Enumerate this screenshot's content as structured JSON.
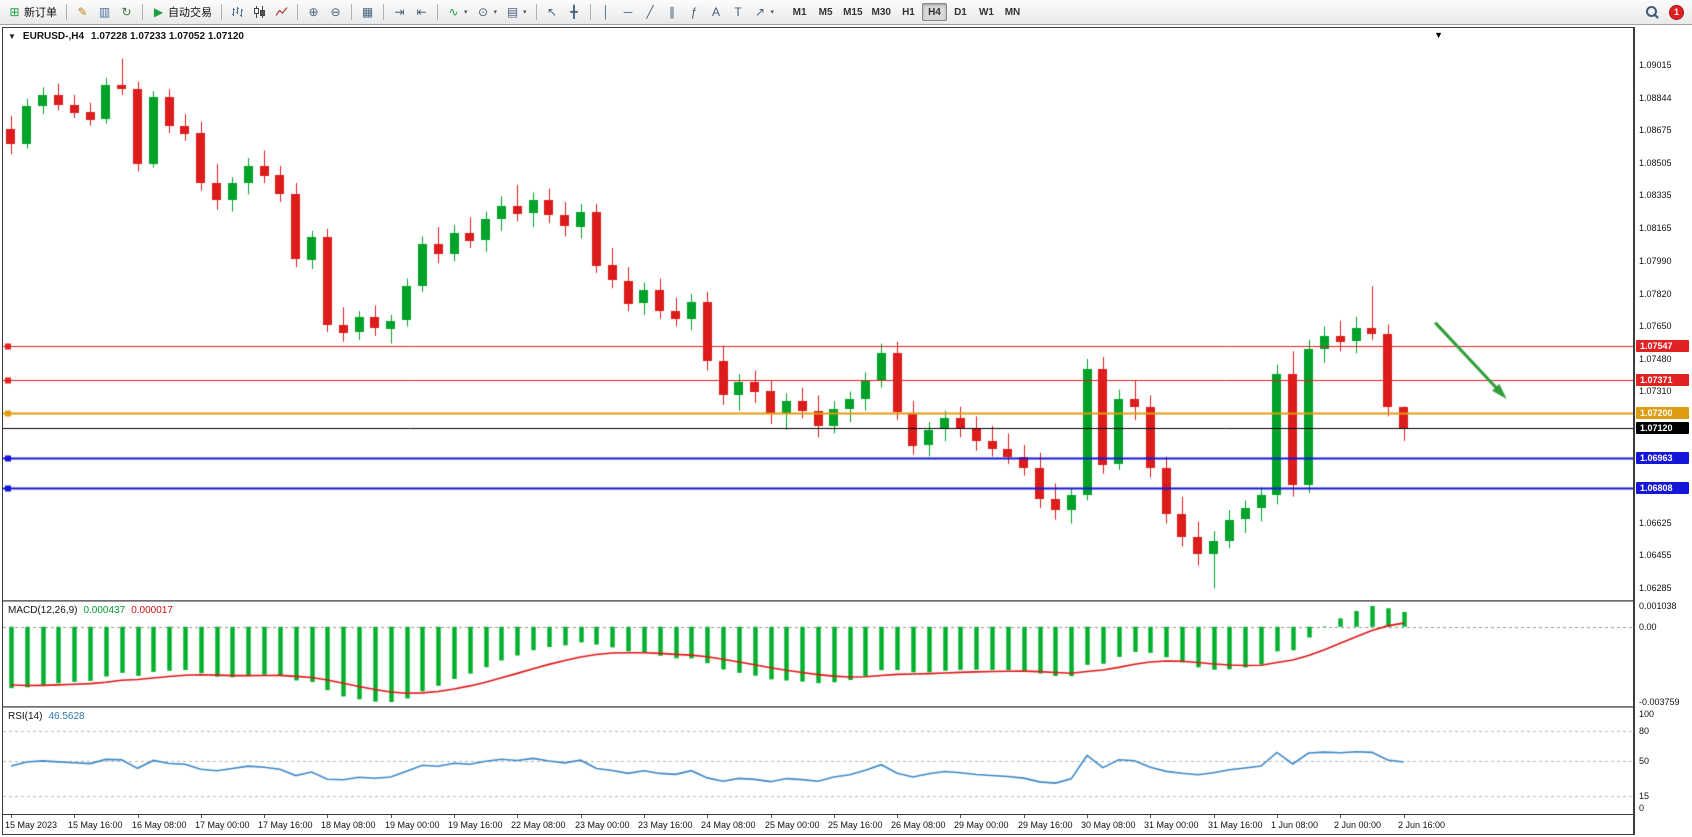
{
  "toolbar": {
    "notification_count": "1",
    "active_timeframe": "H4",
    "timeframes": [
      "M1",
      "M5",
      "M15",
      "M30",
      "H1",
      "H4",
      "D1",
      "W1",
      "MN"
    ],
    "icon_groups": [
      {
        "items": [
          {
            "name": "new-order-button",
            "icon": "new-order-icon",
            "glyph": "⊞",
            "color": "#1f9d46",
            "label": "新订单"
          }
        ]
      },
      {
        "items": [
          {
            "name": "metaeditor-button",
            "icon": "metaeditor-icon",
            "glyph": "✎",
            "color": "#b8860b"
          },
          {
            "name": "market-watch-button",
            "icon": "market-watch-icon",
            "glyph": "▥",
            "color": "#4a6fa5"
          },
          {
            "name": "refresh-button",
            "icon": "refresh-icon",
            "glyph": "↻",
            "color": "#3a7d3a"
          }
        ]
      },
      {
        "items": [
          {
            "name": "autotrading-button",
            "icon": "autotrading-icon",
            "glyph": "▶",
            "color": "#1f9d46",
            "label": "自动交易"
          }
        ]
      },
      {
        "items": [
          {
            "name": "bar-chart-button",
            "icon": "bar-chart-icon",
            "svg": "bars"
          },
          {
            "name": "candlestick-chart-button",
            "icon": "candlestick-chart-icon",
            "svg": "candles"
          },
          {
            "name": "line-chart-button",
            "icon": "line-chart-icon",
            "svg": "line"
          }
        ]
      },
      {
        "items": [
          {
            "name": "zoom-in-button",
            "icon": "zoom-in-icon",
            "glyph": "⊕"
          },
          {
            "name": "zoom-out-button",
            "icon": "zoom-out-icon",
            "glyph": "⊖"
          }
        ]
      },
      {
        "items": [
          {
            "name": "tile-windows-button",
            "icon": "tile-windows-icon",
            "glyph": "▦"
          }
        ]
      },
      {
        "items": [
          {
            "name": "auto-scroll-button",
            "icon": "auto-scroll-icon",
            "glyph": "⇥"
          },
          {
            "name": "chart-shift-button",
            "icon": "chart-shift-icon",
            "glyph": "⇤"
          }
        ]
      },
      {
        "items": [
          {
            "name": "indicators-button",
            "icon": "indicators-icon",
            "glyph": "∿",
            "color": "#1f9d46",
            "caret": true
          },
          {
            "name": "periods-button",
            "icon": "periods-icon",
            "glyph": "⊙",
            "caret": true
          },
          {
            "name": "templates-button",
            "icon": "templates-icon",
            "glyph": "▤",
            "caret": true
          }
        ]
      },
      {
        "items": [
          {
            "name": "cursor-button",
            "icon": "cursor-icon",
            "glyph": "↖"
          },
          {
            "name": "crosshair-button",
            "icon": "crosshair-icon",
            "glyph": "╋"
          }
        ]
      },
      {
        "items": [
          {
            "name": "vertical-line-button",
            "icon": "vertical-line-icon",
            "glyph": "│"
          },
          {
            "name": "horizontal-line-button",
            "icon": "horizontal-line-icon",
            "glyph": "─"
          },
          {
            "name": "trendline-button",
            "icon": "trendline-icon",
            "glyph": "╱"
          },
          {
            "name": "channel-button",
            "icon": "channel-icon",
            "glyph": "∥"
          },
          {
            "name": "fibonacci-button",
            "icon": "fibonacci-icon",
            "glyph": "ƒ"
          },
          {
            "name": "text-button",
            "icon": "text-icon",
            "glyph": "A"
          },
          {
            "name": "label-button",
            "icon": "label-icon",
            "glyph": "T"
          },
          {
            "name": "arrows-button",
            "icon": "arrows-icon",
            "glyph": "↗",
            "caret": true
          }
        ]
      }
    ]
  },
  "chart": {
    "collapse_glyph": "▼",
    "top_arrow_glyph": "▼",
    "symbol_period": "EURUSD-,H4",
    "ohlc_text": "1.07228 1.07233 1.07052 1.07120",
    "open": "1.07228",
    "high": "1.07233",
    "low": "1.07052",
    "close": "1.07120"
  },
  "chart_data": {
    "type": "candlestick",
    "title": "EURUSD-,H4",
    "timeframe": "H4",
    "grid": false,
    "slots_total": 103,
    "x_label_every": 4,
    "x_labels": [
      "15 May 2023",
      "15 May 16:00",
      "16 May 08:00",
      "17 May 00:00",
      "17 May 16:00",
      "18 May 08:00",
      "19 May 00:00",
      "19 May 16:00",
      "22 May 08:00",
      "23 May 00:00",
      "23 May 16:00",
      "24 May 08:00",
      "25 May 00:00",
      "25 May 16:00",
      "26 May 08:00",
      "29 May 00:00",
      "29 May 16:00",
      "30 May 08:00",
      "31 May 00:00",
      "31 May 16:00",
      "1 Jun 08:00",
      "2 Jun 00:00",
      "2 Jun 16:00"
    ],
    "price_range": [
      1.0622,
      1.0921
    ],
    "y_axis_ticks": [
      "1.09015",
      "1.08844",
      "1.08675",
      "1.08505",
      "1.08335",
      "1.08165",
      "1.07990",
      "1.07820",
      "1.07650",
      "1.07480",
      "1.07310",
      "1.06625",
      "1.06455",
      "1.06285"
    ],
    "current_price": "1.07120",
    "candles": [
      [
        1.0868,
        1.0875,
        1.0855,
        1.086
      ],
      [
        1.086,
        1.0884,
        1.0858,
        1.088
      ],
      [
        1.088,
        1.089,
        1.0876,
        1.0886
      ],
      [
        1.0886,
        1.0892,
        1.0878,
        1.0881
      ],
      [
        1.0881,
        1.0886,
        1.0874,
        1.0877
      ],
      [
        1.0877,
        1.0882,
        1.087,
        1.0873
      ],
      [
        1.0873,
        1.0895,
        1.0871,
        1.0891
      ],
      [
        1.0891,
        1.0905,
        1.0886,
        1.0889
      ],
      [
        1.0889,
        1.0893,
        1.0846,
        1.085
      ],
      [
        1.085,
        1.0888,
        1.0848,
        1.0885
      ],
      [
        1.0885,
        1.0889,
        1.0866,
        1.087
      ],
      [
        1.087,
        1.0876,
        1.0862,
        1.0866
      ],
      [
        1.0866,
        1.0872,
        1.0836,
        1.084
      ],
      [
        1.084,
        1.085,
        1.0826,
        1.0831
      ],
      [
        1.0831,
        1.0843,
        1.0825,
        1.084
      ],
      [
        1.084,
        1.0853,
        1.0834,
        1.0849
      ],
      [
        1.0849,
        1.0857,
        1.084,
        1.0844
      ],
      [
        1.0844,
        1.0849,
        1.083,
        1.0834
      ],
      [
        1.0834,
        1.084,
        1.0796,
        1.08
      ],
      [
        1.08,
        1.0815,
        1.0795,
        1.0812
      ],
      [
        1.0812,
        1.0816,
        1.0762,
        1.0766
      ],
      [
        1.0766,
        1.0775,
        1.0757,
        1.0762
      ],
      [
        1.0762,
        1.0773,
        1.0758,
        1.077
      ],
      [
        1.077,
        1.0776,
        1.076,
        1.0764
      ],
      [
        1.0764,
        1.0771,
        1.0756,
        1.0768
      ],
      [
        1.0768,
        1.079,
        1.0765,
        1.0786
      ],
      [
        1.0786,
        1.0812,
        1.0783,
        1.0808
      ],
      [
        1.0808,
        1.0817,
        1.0798,
        1.0803
      ],
      [
        1.0803,
        1.0818,
        1.0799,
        1.0814
      ],
      [
        1.0814,
        1.0822,
        1.0806,
        1.081
      ],
      [
        1.081,
        1.0825,
        1.0804,
        1.0821
      ],
      [
        1.0821,
        1.0833,
        1.0815,
        1.0828
      ],
      [
        1.0828,
        1.0839,
        1.082,
        1.0824
      ],
      [
        1.0824,
        1.0835,
        1.0817,
        1.0831
      ],
      [
        1.0831,
        1.0837,
        1.0819,
        1.0823
      ],
      [
        1.0823,
        1.083,
        1.0812,
        1.0817
      ],
      [
        1.0817,
        1.0829,
        1.0811,
        1.0825
      ],
      [
        1.0825,
        1.0829,
        1.0793,
        1.0797
      ],
      [
        1.0797,
        1.0806,
        1.0785,
        1.0789
      ],
      [
        1.0789,
        1.0796,
        1.0773,
        1.0777
      ],
      [
        1.0777,
        1.0788,
        1.0771,
        1.0784
      ],
      [
        1.0784,
        1.079,
        1.0769,
        1.0773
      ],
      [
        1.0773,
        1.078,
        1.0765,
        1.0769
      ],
      [
        1.0769,
        1.0782,
        1.0763,
        1.0778
      ],
      [
        1.0778,
        1.0783,
        1.0742,
        1.0747
      ],
      [
        1.0747,
        1.0755,
        1.0724,
        1.0729
      ],
      [
        1.0729,
        1.074,
        1.0721,
        1.0736
      ],
      [
        1.0736,
        1.0742,
        1.0725,
        1.0731
      ],
      [
        1.0731,
        1.0737,
        1.0714,
        1.0719
      ],
      [
        1.0719,
        1.073,
        1.0711,
        1.0726
      ],
      [
        1.0726,
        1.0733,
        1.0717,
        1.0721
      ],
      [
        1.0721,
        1.0729,
        1.0707,
        1.0713
      ],
      [
        1.0713,
        1.0726,
        1.0709,
        1.0722
      ],
      [
        1.0722,
        1.0731,
        1.0715,
        1.0727
      ],
      [
        1.0727,
        1.0741,
        1.0721,
        1.0737
      ],
      [
        1.0737,
        1.0756,
        1.0733,
        1.0751
      ],
      [
        1.0751,
        1.0757,
        1.0716,
        1.072
      ],
      [
        1.072,
        1.0726,
        1.0698,
        1.0703
      ],
      [
        1.0703,
        1.0715,
        1.0697,
        1.0711
      ],
      [
        1.0711,
        1.0721,
        1.0705,
        1.0717
      ],
      [
        1.0717,
        1.0723,
        1.0707,
        1.0712
      ],
      [
        1.0712,
        1.0718,
        1.07,
        1.0705
      ],
      [
        1.0705,
        1.0713,
        1.0697,
        1.0701
      ],
      [
        1.0701,
        1.0709,
        1.0693,
        1.0697
      ],
      [
        1.0697,
        1.0703,
        1.0687,
        1.0691
      ],
      [
        1.0691,
        1.0699,
        1.067,
        1.0675
      ],
      [
        1.0675,
        1.0683,
        1.0664,
        1.0669
      ],
      [
        1.0669,
        1.068,
        1.0662,
        1.0677
      ],
      [
        1.0677,
        1.0748,
        1.0674,
        1.0743
      ],
      [
        1.0743,
        1.0749,
        1.0688,
        1.0693
      ],
      [
        1.0693,
        1.0732,
        1.069,
        1.0727
      ],
      [
        1.0727,
        1.0737,
        1.0716,
        1.0723
      ],
      [
        1.0723,
        1.0729,
        1.0686,
        1.0691
      ],
      [
        1.0691,
        1.0697,
        1.0662,
        1.0667
      ],
      [
        1.0667,
        1.0676,
        1.065,
        1.0655
      ],
      [
        1.0655,
        1.0663,
        1.064,
        1.0646
      ],
      [
        1.0646,
        1.0658,
        1.0628,
        1.0653
      ],
      [
        1.0653,
        1.0669,
        1.0649,
        1.0664
      ],
      [
        1.0664,
        1.0674,
        1.0657,
        1.067
      ],
      [
        1.067,
        1.0681,
        1.0663,
        1.0677
      ],
      [
        1.0677,
        1.0745,
        1.0672,
        1.074
      ],
      [
        1.074,
        1.0752,
        1.0676,
        1.0682
      ],
      [
        1.0682,
        1.0758,
        1.0678,
        1.0753
      ],
      [
        1.0753,
        1.0765,
        1.0746,
        1.076
      ],
      [
        1.076,
        1.0768,
        1.0752,
        1.0757
      ],
      [
        1.0757,
        1.077,
        1.0751,
        1.0764
      ],
      [
        1.0764,
        1.0786,
        1.0758,
        1.0761
      ],
      [
        1.0761,
        1.0766,
        1.0718,
        1.0723
      ],
      [
        1.07228,
        1.07233,
        1.07052,
        1.0712
      ]
    ],
    "horizontal_lines": [
      {
        "price": 1.07547,
        "label": "1.07547",
        "color": "#e02222",
        "width": 1,
        "style": "solid",
        "handle": true
      },
      {
        "price": 1.07371,
        "label": "1.07371",
        "color": "#e02222",
        "width": 1,
        "style": "solid",
        "handle": true
      },
      {
        "price": 1.072,
        "label": "1.07200",
        "color": "#e09c10",
        "width": 2,
        "style": "solid",
        "handle": true
      },
      {
        "price": 1.0712,
        "label": "1.07120",
        "color": "#000000",
        "width": 1,
        "style": "solid",
        "handle": false
      },
      {
        "price": 1.06963,
        "label": "1.06963",
        "color": "#1616d8",
        "width": 2,
        "style": "solid",
        "handle": true
      },
      {
        "price": 1.06808,
        "label": "1.06808",
        "color": "#1616d8",
        "width": 2,
        "style": "solid",
        "handle": true
      }
    ],
    "arrow": {
      "from_slot": 90,
      "from_price": 1.0767,
      "to_slot": 94.3,
      "to_price": 1.0729,
      "color": "#2f9e38"
    },
    "colors": {
      "up": "#00a32a",
      "down": "#dd1c1c",
      "macd_hist": "#00b02c",
      "macd_signal": "#e01616",
      "rsi_line": "#3c87c6"
    },
    "macd": {
      "label": "MACD(12,26,9)",
      "main_value": "0.000437",
      "signal_value": "0.000017",
      "params": [
        12,
        26,
        9
      ],
      "range": [
        -0.003759,
        0.001038
      ],
      "axis_labels": [
        "0.001038",
        "0.00",
        "-0.003759"
      ],
      "seed": {
        "ema_fast": 1.091,
        "ema_slow": 1.0938,
        "signal": -0.0028
      }
    },
    "rsi": {
      "label": "RSI(14)",
      "value": "46.5628",
      "period": 14,
      "levels": [
        80,
        50,
        15
      ],
      "range": [
        0,
        100
      ],
      "axis_labels": [
        "100",
        "80",
        "50",
        "15",
        "0"
      ],
      "seed": {
        "avg_gain": 0.0009,
        "avg_loss": 0.0011
      }
    }
  }
}
